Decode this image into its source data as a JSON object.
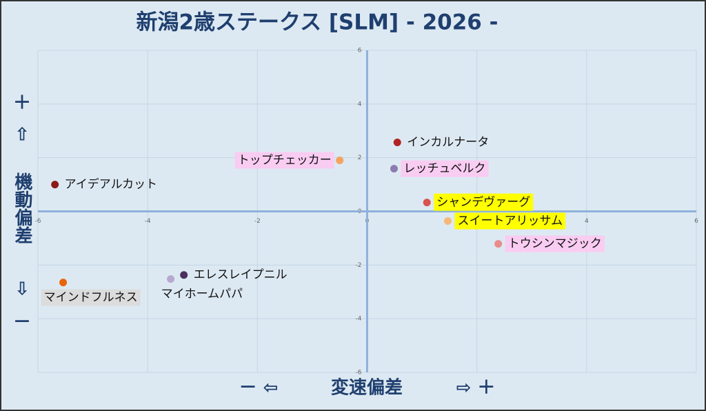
{
  "chart_data": {
    "type": "scatter",
    "title": "新潟2歳ステークス [SLM]  - 2026 -",
    "y_axis_label": "機動偏差",
    "y_plus": "＋",
    "y_up": "⇧",
    "y_down": "⇩",
    "y_minus": "－",
    "x_axis_label": "変速偏差",
    "x_minus": "－ ⇦",
    "x_plus": "⇨ ＋",
    "xlim": [
      -6,
      6
    ],
    "ylim": [
      -6,
      6
    ],
    "xticks": [
      -6,
      -4,
      -2,
      0,
      2,
      4,
      6
    ],
    "yticks": [
      -6,
      -4,
      -2,
      0,
      2,
      4,
      6
    ],
    "grid": true,
    "points": [
      {
        "name": "インカルナータ",
        "x": 0.55,
        "y": 2.57,
        "color": "#b22222"
      },
      {
        "name": "トップチェッカー",
        "x": -0.5,
        "y": 1.9,
        "color": "#f4a460",
        "highlight": "#f9ccf2"
      },
      {
        "name": "レッチュベルク",
        "x": 0.49,
        "y": 1.59,
        "color": "#8e7cb0",
        "highlight": "#f9ccf2"
      },
      {
        "name": "アイデアルカット",
        "x": -5.69,
        "y": 1.0,
        "color": "#8b1a1a"
      },
      {
        "name": "シャンデヴァーグ",
        "x": 1.09,
        "y": 0.33,
        "color": "#d9534f",
        "highlight": "#ffff00"
      },
      {
        "name": "スイートアリッサム",
        "x": 1.47,
        "y": -0.36,
        "color": "#f5b87a",
        "highlight": "#ffff00"
      },
      {
        "name": "トウシンマジック",
        "x": 2.39,
        "y": -1.21,
        "color": "#e88c8c",
        "highlight": "#f9ccf2"
      },
      {
        "name": "エレスレイプニル",
        "x": -3.34,
        "y": -2.37,
        "color": "#4b2f5e"
      },
      {
        "name": "マイホームパパ",
        "x": -3.58,
        "y": -2.52,
        "color": "#b8a8d0"
      },
      {
        "name": "マインドフルネス",
        "x": -5.54,
        "y": -2.65,
        "color": "#e8650a",
        "highlight": "#dcdcdc"
      }
    ]
  }
}
